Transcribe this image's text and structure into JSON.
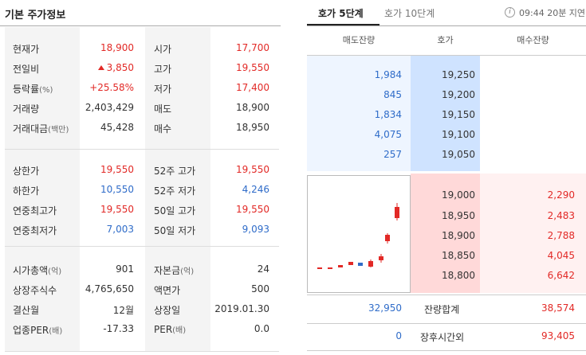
{
  "left": {
    "title": "기본 주가정보",
    "block1": [
      {
        "l1": "현재가",
        "v1": "18,900",
        "c1": "red",
        "l2": "시가",
        "v2": "17,700",
        "c2": "red"
      },
      {
        "l1": "전일비",
        "v1": "3,850",
        "c1": "red",
        "l2": "고가",
        "v2": "19,550",
        "c2": "red"
      },
      {
        "l1": "등락률",
        "l1s": "(%)",
        "v1": "+25.58%",
        "c1": "red",
        "l2": "저가",
        "v2": "17,400",
        "c2": "red"
      },
      {
        "l1": "거래량",
        "v1": "2,403,429",
        "c1": "dark",
        "l2": "매도",
        "v2": "18,900",
        "c2": "dark"
      },
      {
        "l1": "거래대금",
        "l1s": "(백만)",
        "v1": "45,428",
        "c1": "dark",
        "l2": "매수",
        "v2": "18,950",
        "c2": "dark"
      }
    ],
    "block2": [
      {
        "l1": "상한가",
        "v1": "19,550",
        "c1": "red",
        "l2": "52주 고가",
        "v2": "19,550",
        "c2": "red"
      },
      {
        "l1": "하한가",
        "v1": "10,550",
        "c1": "blue",
        "l2": "52주 저가",
        "v2": "4,246",
        "c2": "blue"
      },
      {
        "l1": "연중최고가",
        "v1": "19,550",
        "c1": "red",
        "l2": "50일 고가",
        "v2": "19,550",
        "c2": "red"
      },
      {
        "l1": "연중최저가",
        "v1": "7,003",
        "c1": "blue",
        "l2": "50일 저가",
        "v2": "9,093",
        "c2": "blue"
      }
    ],
    "block3": [
      {
        "l1": "시가총액",
        "l1s": "(억)",
        "v1": "901",
        "c1": "dark",
        "l2": "자본금",
        "l2s": "(억)",
        "v2": "24",
        "c2": "dark"
      },
      {
        "l1": "상장주식수",
        "v1": "4,765,650",
        "c1": "dark",
        "l2": "액면가",
        "v2": "500",
        "c2": "dark"
      },
      {
        "l1": "결산월",
        "v1": "12월",
        "c1": "dark",
        "l2": "상장일",
        "v2": "2019.01.30",
        "c2": "dark"
      },
      {
        "l1": "업종PER",
        "l1s": "(배)",
        "v1": "-17.33",
        "c1": "dark",
        "l2": "PER",
        "l2s": "(배)",
        "v2": "0.0",
        "c2": "dark"
      }
    ]
  },
  "right": {
    "tabs": [
      "호가 5단계",
      "호가 10단계"
    ],
    "info_icon_glyph": "i",
    "time_delay": "09:44 20분 지연",
    "headers": {
      "sell": "매도잔량",
      "price": "호가",
      "buy": "매수잔량"
    },
    "asks": [
      {
        "qty": "1,984",
        "price": "19,250"
      },
      {
        "qty": "845",
        "price": "19,200"
      },
      {
        "qty": "1,834",
        "price": "19,150"
      },
      {
        "qty": "4,075",
        "price": "19,100"
      },
      {
        "qty": "257",
        "price": "19,050"
      }
    ],
    "bids": [
      {
        "price": "19,000",
        "qty": "2,290"
      },
      {
        "price": "18,950",
        "qty": "2,483"
      },
      {
        "price": "18,900",
        "qty": "2,788"
      },
      {
        "price": "18,850",
        "qty": "4,045"
      },
      {
        "price": "18,800",
        "qty": "6,642"
      }
    ],
    "summary": [
      {
        "sell": "32,950",
        "label": "잔량합계",
        "buy": "38,574"
      },
      {
        "sell": "0",
        "label": "장후시간외",
        "buy": "93,405"
      }
    ]
  },
  "colors": {
    "up": "#e22926",
    "down": "#2f6cc9",
    "ask_bg": "#eef5ff",
    "ask_price_bg": "#cfe3ff",
    "bid_bg": "#fff1f1",
    "bid_price_bg": "#ffd9d9"
  }
}
